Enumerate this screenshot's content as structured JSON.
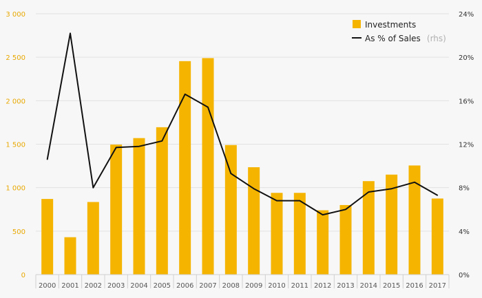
{
  "chart_data": {
    "type": "bar",
    "categories": [
      "2000",
      "2001",
      "2002",
      "2003",
      "2004",
      "2005",
      "2006",
      "2007",
      "2008",
      "2009",
      "2010",
      "2011",
      "2012",
      "2013",
      "2014",
      "2015",
      "2016",
      "2017"
    ],
    "series": [
      {
        "name": "Investments",
        "type": "bar",
        "axis": "left",
        "values": [
          870,
          430,
          835,
          1495,
          1570,
          1695,
          2455,
          2490,
          1490,
          1235,
          940,
          940,
          740,
          800,
          1075,
          1150,
          1255,
          875
        ]
      },
      {
        "name": "As % of Sales",
        "type": "line",
        "axis": "right",
        "values": [
          10.6,
          22.2,
          8.0,
          11.7,
          11.8,
          12.3,
          16.6,
          15.4,
          9.3,
          7.9,
          6.8,
          6.8,
          5.5,
          6.0,
          7.6,
          7.9,
          8.5,
          7.3
        ]
      }
    ],
    "y_left": {
      "ylim": [
        0,
        3000
      ],
      "ticks": [
        0,
        500,
        1000,
        1500,
        2000,
        2500,
        3000
      ],
      "tick_labels": [
        "0",
        "500",
        "1 000",
        "1 500",
        "2 000",
        "2 500",
        "3 000"
      ]
    },
    "y_right": {
      "ylim": [
        0,
        24
      ],
      "ticks": [
        0,
        4,
        8,
        12,
        16,
        20,
        24
      ],
      "tick_labels": [
        "0%",
        "4%",
        "8%",
        "12%",
        "16%",
        "20%",
        "24%"
      ]
    },
    "grid": true,
    "legend": {
      "position": "top-right",
      "items": [
        {
          "label": "Investments",
          "note": ""
        },
        {
          "label": "As % of Sales",
          "note": "(rhs)"
        }
      ]
    },
    "colors": {
      "bar": "#f5b400",
      "line": "#111111",
      "grid": "#e2e2e2",
      "left_ticks": "#e8a800"
    }
  }
}
